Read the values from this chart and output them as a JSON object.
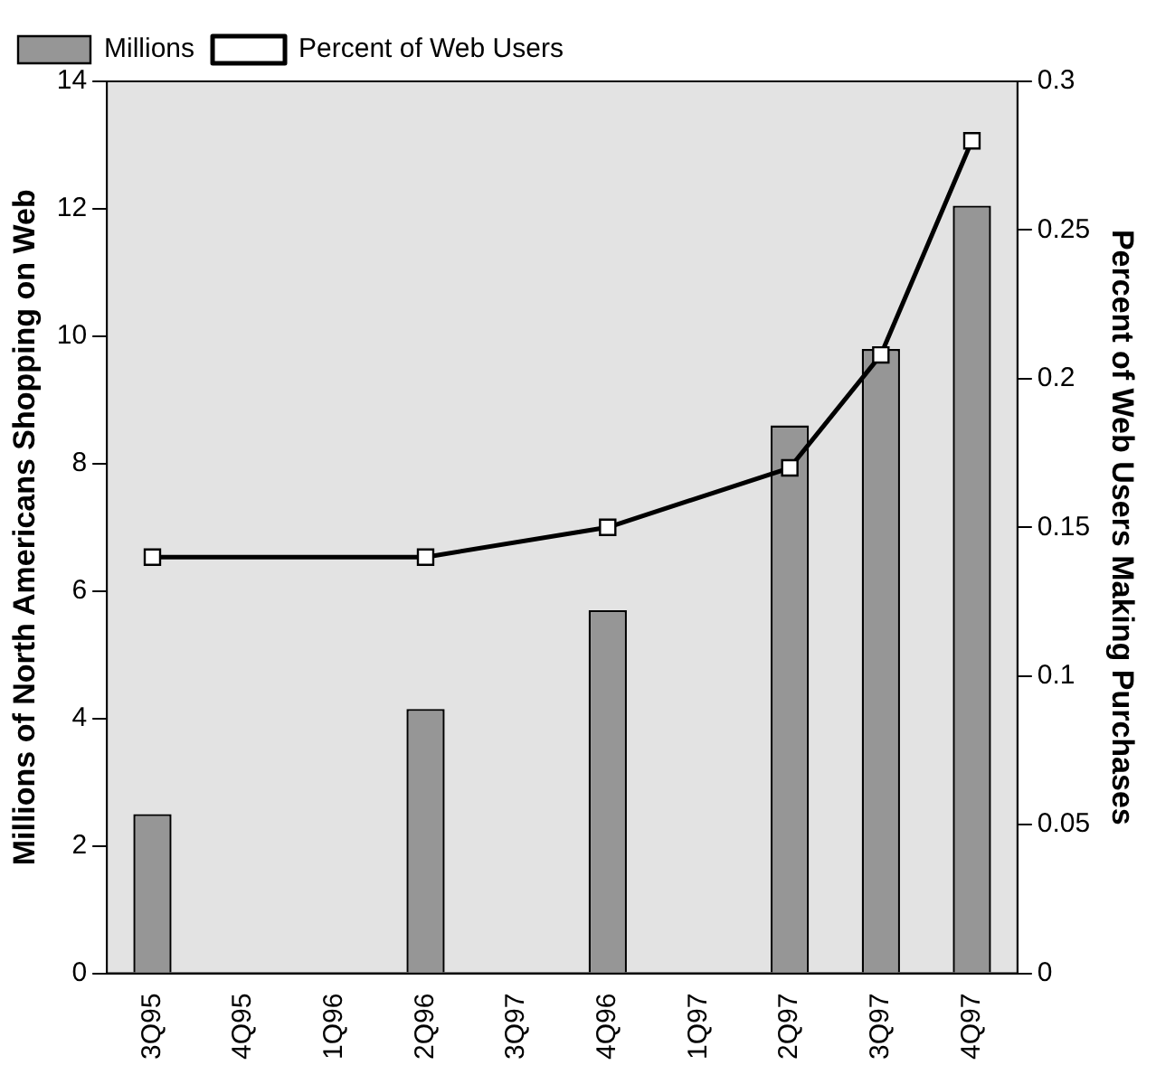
{
  "chart_data": {
    "type": "bar",
    "ylabel": "Millions of North Americans Shopping on Web",
    "y2label": "Percent of Web Users Making Purchases",
    "categories": [
      "3Q95",
      "4Q95",
      "1Q96",
      "2Q96",
      "3Q97",
      "4Q96",
      "1Q97",
      "2Q97",
      "3Q97",
      "4Q97"
    ],
    "series": [
      {
        "name": "Millions",
        "color": "#969696",
        "values": [
          2.5,
          null,
          null,
          4.15,
          null,
          5.7,
          null,
          8.6,
          9.8,
          12.05
        ]
      },
      {
        "name": "Percent of Web Users",
        "type": "line",
        "axis": "y2",
        "color": "#000000",
        "marker": "square",
        "values": [
          0.14,
          null,
          null,
          0.14,
          null,
          0.15,
          null,
          0.17,
          0.208,
          0.28
        ]
      }
    ],
    "ylim": [
      0,
      14
    ],
    "yticks": [
      0,
      2,
      4,
      6,
      8,
      10,
      12,
      14
    ],
    "y2lim": [
      0,
      0.3
    ],
    "y2ticks": [
      0,
      0.05,
      0.1,
      0.15,
      0.2,
      0.25,
      0.3
    ],
    "grid": false,
    "legend": "top left"
  }
}
